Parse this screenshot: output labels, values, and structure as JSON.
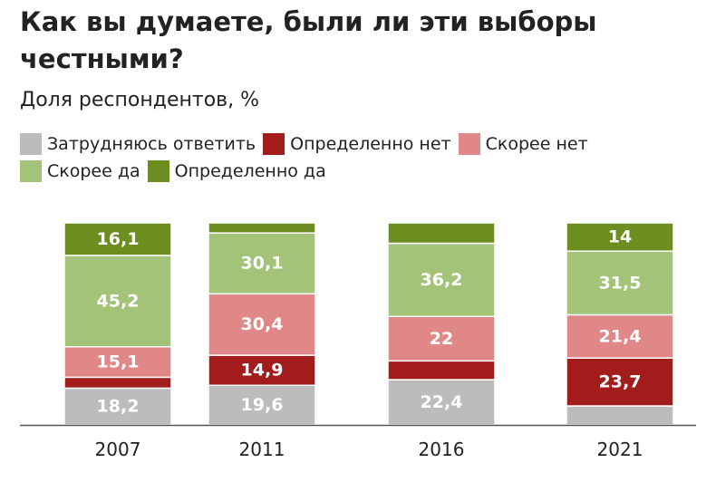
{
  "title": "Как вы думаете, были ли эти выборы честными?",
  "subtitle": "Доля респондентов, %",
  "legend": {
    "items": [
      {
        "label": "Затрудняюсь ответить",
        "color": "#bcbcbc"
      },
      {
        "label": "Определенно нет",
        "color": "#a21c1c"
      },
      {
        "label": "Скорее нет",
        "color": "#e08787"
      },
      {
        "label": "Скорее да",
        "color": "#a2c378"
      },
      {
        "label": "Определенно да",
        "color": "#6b8e1e"
      }
    ]
  },
  "chart_data": {
    "type": "bar",
    "stacked": true,
    "categories": [
      "2007",
      "2011",
      "2016",
      "2021"
    ],
    "series": [
      {
        "name": "Затрудняюсь ответить",
        "color": "#bcbcbc",
        "values": [
          18.2,
          19.6,
          22.4,
          9.4
        ],
        "labels": [
          "18,2",
          "19,6",
          "22,4",
          ""
        ]
      },
      {
        "name": "Определенно нет",
        "color": "#a21c1c",
        "values": [
          5.4,
          14.9,
          9.3,
          23.7
        ],
        "labels": [
          "",
          "14,9",
          "",
          "23,7"
        ]
      },
      {
        "name": "Скорее нет",
        "color": "#e08787",
        "values": [
          15.1,
          30.4,
          22,
          21.4
        ],
        "labels": [
          "15,1",
          "30,4",
          "22",
          "21,4"
        ]
      },
      {
        "name": "Скорее да",
        "color": "#a2c378",
        "values": [
          45.2,
          30.1,
          36.2,
          31.5
        ],
        "labels": [
          "45,2",
          "30,1",
          "36,2",
          "31,5"
        ]
      },
      {
        "name": "Определенно да",
        "color": "#6b8e1e",
        "values": [
          16.1,
          5,
          10.1,
          14
        ],
        "labels": [
          "16,1",
          "",
          "",
          "14"
        ]
      }
    ],
    "ylim": [
      0,
      100
    ],
    "grid": false
  }
}
